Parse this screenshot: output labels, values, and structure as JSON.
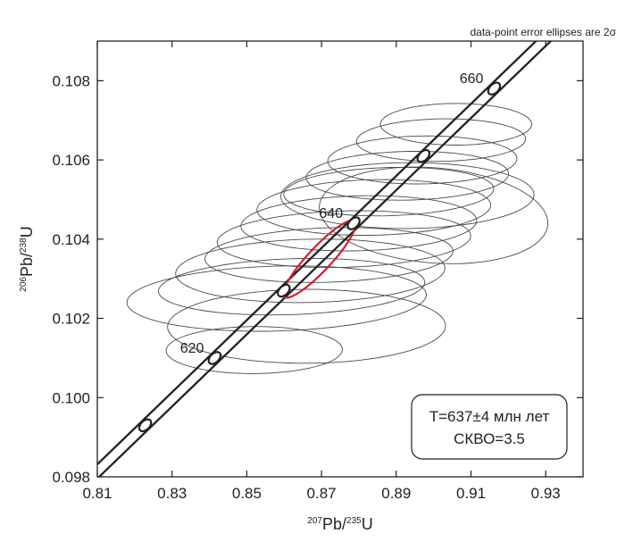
{
  "chart_data": {
    "type": "scatter",
    "subtype": "concordia-diagram",
    "annotation_top": "data-point error ellipses are 2σ",
    "xlabel": {
      "sup": "207",
      "main": "Pb/",
      "sup2": "235",
      "main2": "U"
    },
    "ylabel": {
      "sup": "206",
      "main": "Pb/",
      "sup2": "238",
      "main2": "U"
    },
    "xlim": [
      0.81,
      0.94
    ],
    "ylim": [
      0.098,
      0.109
    ],
    "x_ticks": [
      "0.81",
      "0.83",
      "0.85",
      "0.87",
      "0.89",
      "0.91",
      "0.93"
    ],
    "y_ticks": [
      "0.098",
      "0.100",
      "0.102",
      "0.104",
      "0.106",
      "0.108"
    ],
    "concordia_ages": [
      {
        "age": 610,
        "x": 0.8228,
        "y": 0.0993,
        "label": ""
      },
      {
        "age": 620,
        "x": 0.8414,
        "y": 0.101,
        "label": "620"
      },
      {
        "age": 630,
        "x": 0.8599,
        "y": 0.1027,
        "label": ""
      },
      {
        "age": 640,
        "x": 0.8786,
        "y": 0.1044,
        "label": "640"
      },
      {
        "age": 650,
        "x": 0.8973,
        "y": 0.1061,
        "label": ""
      },
      {
        "age": 660,
        "x": 0.9162,
        "y": 0.1078,
        "label": "660"
      }
    ],
    "data_ellipses": [
      {
        "x": 0.858,
        "y": 0.1025,
        "rx": 0.05,
        "ry": 0.001,
        "angle": 38
      },
      {
        "x": 0.862,
        "y": 0.1028,
        "rx": 0.047,
        "ry": 0.0009,
        "angle": 42
      },
      {
        "x": 0.867,
        "y": 0.1032,
        "rx": 0.046,
        "ry": 0.001,
        "angle": 40
      },
      {
        "x": 0.872,
        "y": 0.1036,
        "rx": 0.045,
        "ry": 0.0009,
        "angle": 44
      },
      {
        "x": 0.876,
        "y": 0.104,
        "rx": 0.044,
        "ry": 0.0009,
        "angle": 41
      },
      {
        "x": 0.88,
        "y": 0.1044,
        "rx": 0.042,
        "ry": 0.0009,
        "angle": 43
      },
      {
        "x": 0.884,
        "y": 0.1048,
        "rx": 0.041,
        "ry": 0.0009,
        "angle": 42
      },
      {
        "x": 0.888,
        "y": 0.1052,
        "rx": 0.038,
        "ry": 0.0008,
        "angle": 44
      },
      {
        "x": 0.893,
        "y": 0.1056,
        "rx": 0.036,
        "ry": 0.0008,
        "angle": 43
      },
      {
        "x": 0.897,
        "y": 0.106,
        "rx": 0.034,
        "ry": 0.0008,
        "angle": 44
      },
      {
        "x": 0.902,
        "y": 0.1065,
        "rx": 0.03,
        "ry": 0.0007,
        "angle": 43
      },
      {
        "x": 0.906,
        "y": 0.1069,
        "rx": 0.027,
        "ry": 0.0007,
        "angle": 44
      },
      {
        "x": 0.866,
        "y": 0.1018,
        "rx": 0.044,
        "ry": 0.0011,
        "angle": 34
      },
      {
        "x": 0.9,
        "y": 0.1046,
        "rx": 0.034,
        "ry": 0.0014,
        "angle": 30
      },
      {
        "x": 0.893,
        "y": 0.1051,
        "rx": 0.041,
        "ry": 0.001,
        "angle": 36
      },
      {
        "x": 0.852,
        "y": 0.1012,
        "rx": 0.032,
        "ry": 0.0008,
        "angle": 45
      }
    ],
    "mean_ellipse": {
      "x": 0.8695,
      "y": 0.1035,
      "rx": 0.0175,
      "ry": 0.00033,
      "angle": 45,
      "color": "#d0202a"
    },
    "colors": {
      "data_ellipse": "#4a4a4a",
      "concordia": "#222222",
      "mean_ellipse": "#d0202a"
    },
    "result_box": {
      "line1": "T=637±4 млн лет",
      "line2": "СКВО=3.5"
    }
  }
}
